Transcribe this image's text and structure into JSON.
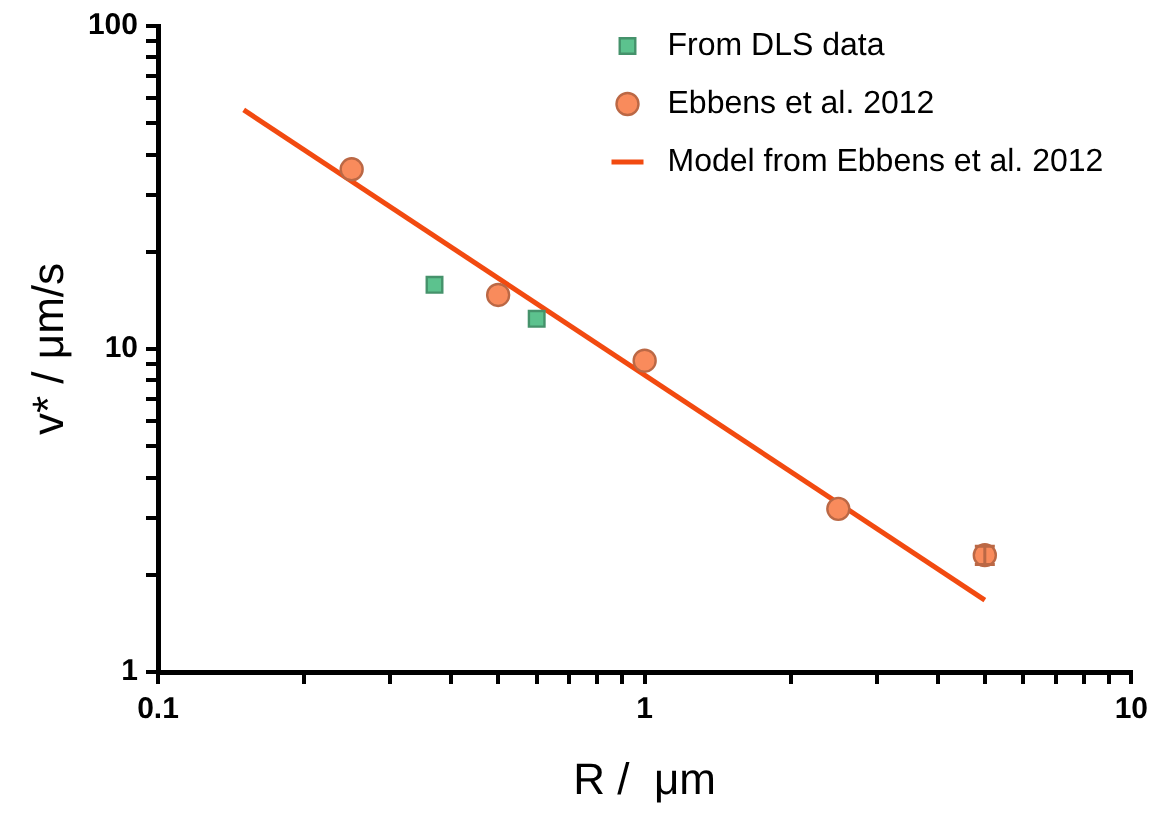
{
  "chart_data": {
    "type": "scatter",
    "xlabel": "R /  μm",
    "ylabel": "v* / μm/s",
    "log": "xy",
    "grid": false,
    "legend": "top right",
    "xlim": [
      0.1,
      10
    ],
    "xticks": [
      0.1,
      {
        "value": 0.2,
        "label": null
      },
      {
        "value": 0.3,
        "label": null
      },
      {
        "value": 0.4,
        "label": null
      },
      {
        "value": 0.5,
        "label": null
      },
      {
        "value": 0.6,
        "label": null
      },
      {
        "value": 0.7,
        "label": null
      },
      {
        "value": 0.8,
        "label": null
      },
      {
        "value": 0.9,
        "label": null
      },
      1,
      {
        "value": 2,
        "label": null
      },
      {
        "value": 3,
        "label": null
      },
      {
        "value": 4,
        "label": null
      },
      {
        "value": 5,
        "label": null
      },
      {
        "value": 6,
        "label": null
      },
      {
        "value": 7,
        "label": null
      },
      {
        "value": 8,
        "label": null
      },
      {
        "value": 9,
        "label": null
      },
      10
    ],
    "ylim": [
      1,
      100
    ],
    "yticks": [
      1,
      {
        "value": 2,
        "label": null
      },
      {
        "value": 3,
        "label": null
      },
      {
        "value": 4,
        "label": null
      },
      {
        "value": 5,
        "label": null
      },
      {
        "value": 6,
        "label": null
      },
      {
        "value": 7,
        "label": null
      },
      {
        "value": 8,
        "label": null
      },
      {
        "value": 9,
        "label": null
      },
      10,
      {
        "value": 20,
        "label": null
      },
      {
        "value": 30,
        "label": null
      },
      {
        "value": 40,
        "label": null
      },
      {
        "value": 50,
        "label": null
      },
      {
        "value": 60,
        "label": null
      },
      {
        "value": 70,
        "label": null
      },
      {
        "value": 80,
        "label": null
      },
      {
        "value": 90,
        "label": null
      },
      100
    ],
    "series": [
      {
        "name": "From DLS data",
        "marker": "square",
        "color": "#5cc28e",
        "x": [
          0.37,
          0.6
        ],
        "values": [
          15.8,
          12.4
        ]
      },
      {
        "name": "Ebbens et al. 2012",
        "marker": "circle",
        "color": "#f98b5c",
        "x": [
          0.25,
          0.5,
          1,
          2.5,
          5
        ],
        "values": [
          36,
          14.7,
          9.2,
          3.2,
          2.3
        ],
        "errors": [
          null,
          null,
          null,
          null,
          0.15
        ]
      },
      {
        "name": "Model from Ebbens et al. 2012",
        "type": "line",
        "marker": "none",
        "line_style": "solid",
        "color": "#f24a10",
        "x": [
          0.15,
          5
        ],
        "values": [
          55,
          1.67
        ]
      }
    ]
  }
}
